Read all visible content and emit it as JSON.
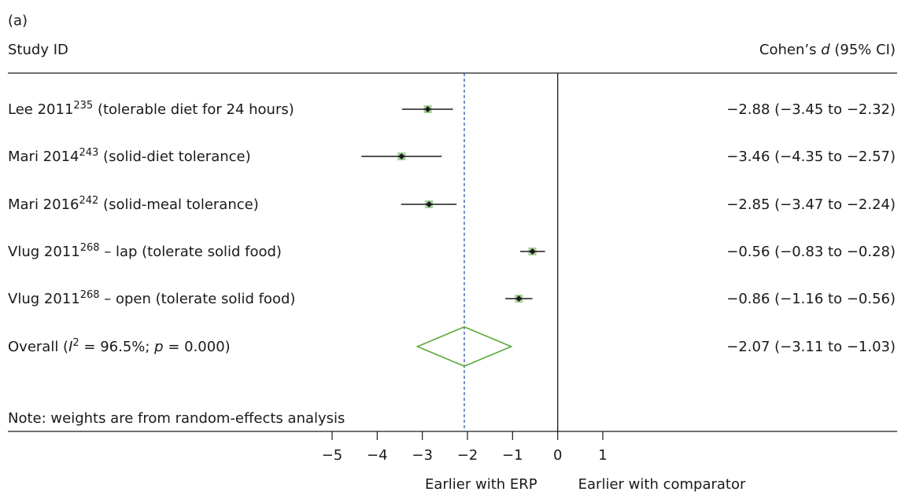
{
  "chart_data": {
    "type": "forest",
    "panel_label": "(a)",
    "column_left_header": "Study ID",
    "column_right_header": {
      "prefix": "Cohen’s ",
      "italic": "d",
      "suffix": " (95% CI)"
    },
    "studies": [
      {
        "label_parts": [
          {
            "t": "Lee 2011"
          },
          {
            "t": "235",
            "sup": true
          },
          {
            "t": " (tolerable diet for 24 hours)"
          }
        ],
        "estimate": -2.88,
        "ci_low": -3.45,
        "ci_high": -2.32,
        "ci_text": "−2.88 (−3.45 to −2.32)"
      },
      {
        "label_parts": [
          {
            "t": "Mari 2014"
          },
          {
            "t": "243",
            "sup": true
          },
          {
            "t": " (solid-diet tolerance)"
          }
        ],
        "estimate": -3.46,
        "ci_low": -4.35,
        "ci_high": -2.57,
        "ci_text": "−3.46 (−4.35 to −2.57)"
      },
      {
        "label_parts": [
          {
            "t": "Mari 2016"
          },
          {
            "t": "242",
            "sup": true
          },
          {
            "t": " (solid-meal tolerance)"
          }
        ],
        "estimate": -2.85,
        "ci_low": -3.47,
        "ci_high": -2.24,
        "ci_text": "−2.85 (−3.47 to −2.24)"
      },
      {
        "label_parts": [
          {
            "t": "Vlug 2011"
          },
          {
            "t": "268",
            "sup": true
          },
          {
            "t": " – lap (tolerate solid food)"
          }
        ],
        "estimate": -0.56,
        "ci_low": -0.83,
        "ci_high": -0.28,
        "ci_text": "−0.56 (−0.83 to −0.28)"
      },
      {
        "label_parts": [
          {
            "t": "Vlug 2011"
          },
          {
            "t": "268",
            "sup": true
          },
          {
            "t": " – open (tolerate solid food)"
          }
        ],
        "estimate": -0.86,
        "ci_low": -1.16,
        "ci_high": -0.56,
        "ci_text": "−0.86 (−1.16 to −0.56)"
      }
    ],
    "overall": {
      "label_parts": [
        {
          "t": "Overall ("
        },
        {
          "t": "I",
          "italic": true
        },
        {
          "t": "2",
          "sup": true
        },
        {
          "t": " = 96.5%; "
        },
        {
          "t": "p",
          "italic": true
        },
        {
          "t": " = 0.000)"
        }
      ],
      "estimate": -2.07,
      "ci_low": -3.11,
      "ci_high": -1.03,
      "ci_text": "−2.07 (−3.11 to −1.03)"
    },
    "note": "Note: weights are from random-effects analysis",
    "x_ticks": [
      -5,
      -4,
      -3,
      -2,
      -1,
      0,
      1
    ],
    "x_tick_labels": [
      "−5",
      "−4",
      "−3",
      "−2",
      "−1",
      "0",
      "1"
    ],
    "xlim": [
      -5,
      1
    ],
    "null_line": 0,
    "reference_line": -2.07,
    "x_label_left": "Earlier with ERP",
    "x_label_right": "Earlier with comparator",
    "colors": {
      "diamond": "#5aaa3c",
      "weight_box": "#a6cf97",
      "reference_line": "#2e5aa8",
      "text": "#1a1a1a"
    }
  }
}
